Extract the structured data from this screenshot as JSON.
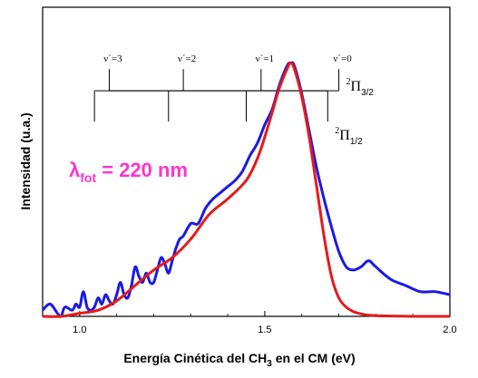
{
  "chart_data": {
    "type": "line",
    "xlabel_main": "Energía Cinética del CH",
    "xlabel_sub": "3",
    "xlabel_rest": " en el  CM (eV)",
    "ylabel": "Intensidad (u.a.)",
    "xlim": [
      0.9,
      2.0
    ],
    "ylim": [
      0.0,
      1.0
    ],
    "x_ticks": [
      1.0,
      1.5,
      2.0
    ],
    "x_tick_labels": [
      "1.0",
      "1.5",
      "2.0"
    ],
    "grid": false,
    "annotation": {
      "lambda_symbol": "λ",
      "lambda_sub": "fot",
      "lambda_text": " = 220 nm",
      "color": "#ff33cc"
    },
    "progressions": [
      {
        "state_sup": "2",
        "state_symbol": "Π",
        "state_sub": "3/2",
        "baseline": 0.73,
        "top": 0.8,
        "positions": [
          1.08,
          1.28,
          1.49,
          1.7
        ],
        "labels": [
          "ν´=3",
          "ν´=2",
          "ν´=1",
          "ν´=0"
        ]
      },
      {
        "state_sup": "2",
        "state_symbol": "Π",
        "state_sub": "1/2",
        "baseline": 0.73,
        "top": 0.63,
        "positions": [
          1.04,
          1.24,
          1.45,
          1.67
        ]
      }
    ],
    "series": [
      {
        "color": "#1a1ae6",
        "x": [
          0.9,
          0.92,
          0.94,
          0.95,
          0.96,
          0.98,
          0.99,
          1.0,
          1.01,
          1.02,
          1.03,
          1.04,
          1.05,
          1.06,
          1.07,
          1.08,
          1.09,
          1.1,
          1.11,
          1.12,
          1.13,
          1.14,
          1.15,
          1.16,
          1.17,
          1.18,
          1.19,
          1.2,
          1.21,
          1.22,
          1.23,
          1.24,
          1.25,
          1.26,
          1.27,
          1.28,
          1.3,
          1.32,
          1.34,
          1.36,
          1.38,
          1.4,
          1.42,
          1.44,
          1.46,
          1.48,
          1.5,
          1.52,
          1.54,
          1.56,
          1.57,
          1.58,
          1.6,
          1.62,
          1.64,
          1.66,
          1.68,
          1.7,
          1.72,
          1.74,
          1.76,
          1.78,
          1.8,
          1.84,
          1.88,
          1.92,
          1.96,
          2.0
        ],
        "y": [
          0.02,
          0.04,
          0.01,
          0.0,
          0.03,
          0.02,
          0.04,
          0.03,
          0.08,
          0.03,
          0.02,
          0.03,
          0.06,
          0.04,
          0.07,
          0.05,
          0.04,
          0.07,
          0.11,
          0.07,
          0.06,
          0.1,
          0.16,
          0.13,
          0.11,
          0.14,
          0.11,
          0.11,
          0.15,
          0.19,
          0.17,
          0.14,
          0.18,
          0.22,
          0.25,
          0.26,
          0.3,
          0.3,
          0.35,
          0.38,
          0.4,
          0.42,
          0.44,
          0.47,
          0.52,
          0.56,
          0.62,
          0.67,
          0.75,
          0.81,
          0.82,
          0.81,
          0.72,
          0.6,
          0.48,
          0.38,
          0.29,
          0.21,
          0.16,
          0.15,
          0.16,
          0.18,
          0.16,
          0.12,
          0.1,
          0.08,
          0.08,
          0.07
        ]
      },
      {
        "color": "#e61a1a",
        "x": [
          0.9,
          0.95,
          1.0,
          1.05,
          1.1,
          1.15,
          1.2,
          1.25,
          1.3,
          1.35,
          1.4,
          1.45,
          1.48,
          1.5,
          1.52,
          1.54,
          1.56,
          1.57,
          1.58,
          1.6,
          1.62,
          1.64,
          1.66,
          1.68,
          1.7,
          1.72,
          1.74,
          1.76,
          1.78,
          1.8,
          1.85,
          1.9,
          2.0
        ],
        "y": [
          0.0,
          0.0,
          0.01,
          0.02,
          0.05,
          0.1,
          0.15,
          0.19,
          0.25,
          0.33,
          0.38,
          0.44,
          0.51,
          0.58,
          0.66,
          0.74,
          0.8,
          0.82,
          0.8,
          0.71,
          0.58,
          0.42,
          0.26,
          0.13,
          0.06,
          0.03,
          0.015,
          0.008,
          0.004,
          0.002,
          0.001,
          0.0,
          0.0
        ]
      }
    ]
  }
}
